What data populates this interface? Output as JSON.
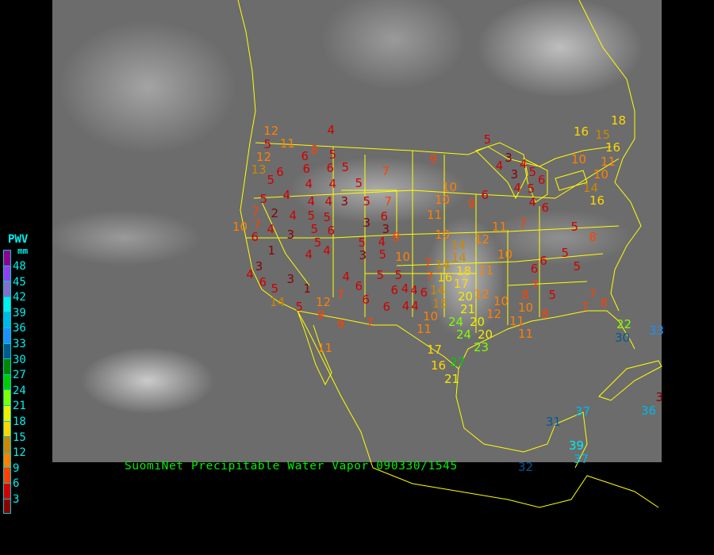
{
  "caption": "SuomiNet Precipitable Water Vapor 090330/1545",
  "legend": {
    "title": "PWV",
    "unit": "mm",
    "ticks": [
      "48",
      "45",
      "42",
      "39",
      "36",
      "33",
      "30",
      "27",
      "24",
      "21",
      "18",
      "15",
      "12",
      "9",
      "6",
      "3"
    ],
    "colors_top_to_bottom": [
      "#900090",
      "#9040f0",
      "#8070d0",
      "#00eeee",
      "#00b8e8",
      "#1e90ff",
      "#005a90",
      "#008800",
      "#00cc00",
      "#80ff00",
      "#eeee00",
      "#ffd700",
      "#cc8800",
      "#ff8000",
      "#ff4000",
      "#d00000",
      "#8b0000"
    ]
  },
  "map": {
    "overlay_color": "#ffff00",
    "basemap": "satellite infrared, North America"
  },
  "stations": [
    4,
    12,
    11,
    5,
    12,
    8,
    5,
    6,
    6,
    6,
    5,
    7,
    13,
    6,
    5,
    4,
    4,
    5,
    4,
    5,
    4,
    4,
    3,
    5,
    7,
    7,
    2,
    4,
    5,
    5,
    10,
    7,
    4,
    3,
    5,
    6,
    3,
    6,
    3,
    6,
    8,
    5,
    5,
    4,
    1,
    4,
    4,
    3,
    5,
    10,
    3,
    4,
    6,
    3,
    5,
    1,
    4,
    5,
    5,
    6,
    6,
    4,
    7,
    6,
    12,
    14,
    5,
    6,
    4,
    9,
    9,
    7,
    11,
    7,
    7,
    18,
    16,
    15,
    5,
    16,
    9,
    10,
    3,
    4,
    4,
    5,
    6,
    3,
    11,
    10,
    10,
    4,
    5,
    4,
    14,
    10,
    6,
    16,
    9,
    6,
    11,
    11,
    7,
    5,
    10,
    12,
    8,
    14,
    14,
    10,
    5,
    6,
    5,
    14,
    11,
    6,
    18,
    16,
    17,
    7,
    4,
    6,
    14,
    15,
    20,
    12,
    8,
    5,
    7,
    4,
    10,
    12,
    10,
    10,
    8,
    7,
    8,
    21,
    11,
    24,
    20,
    11,
    24,
    20,
    11,
    22,
    30,
    23,
    17,
    27,
    16,
    21,
    33,
    31,
    37,
    36,
    3,
    39,
    37,
    32
  ]
}
